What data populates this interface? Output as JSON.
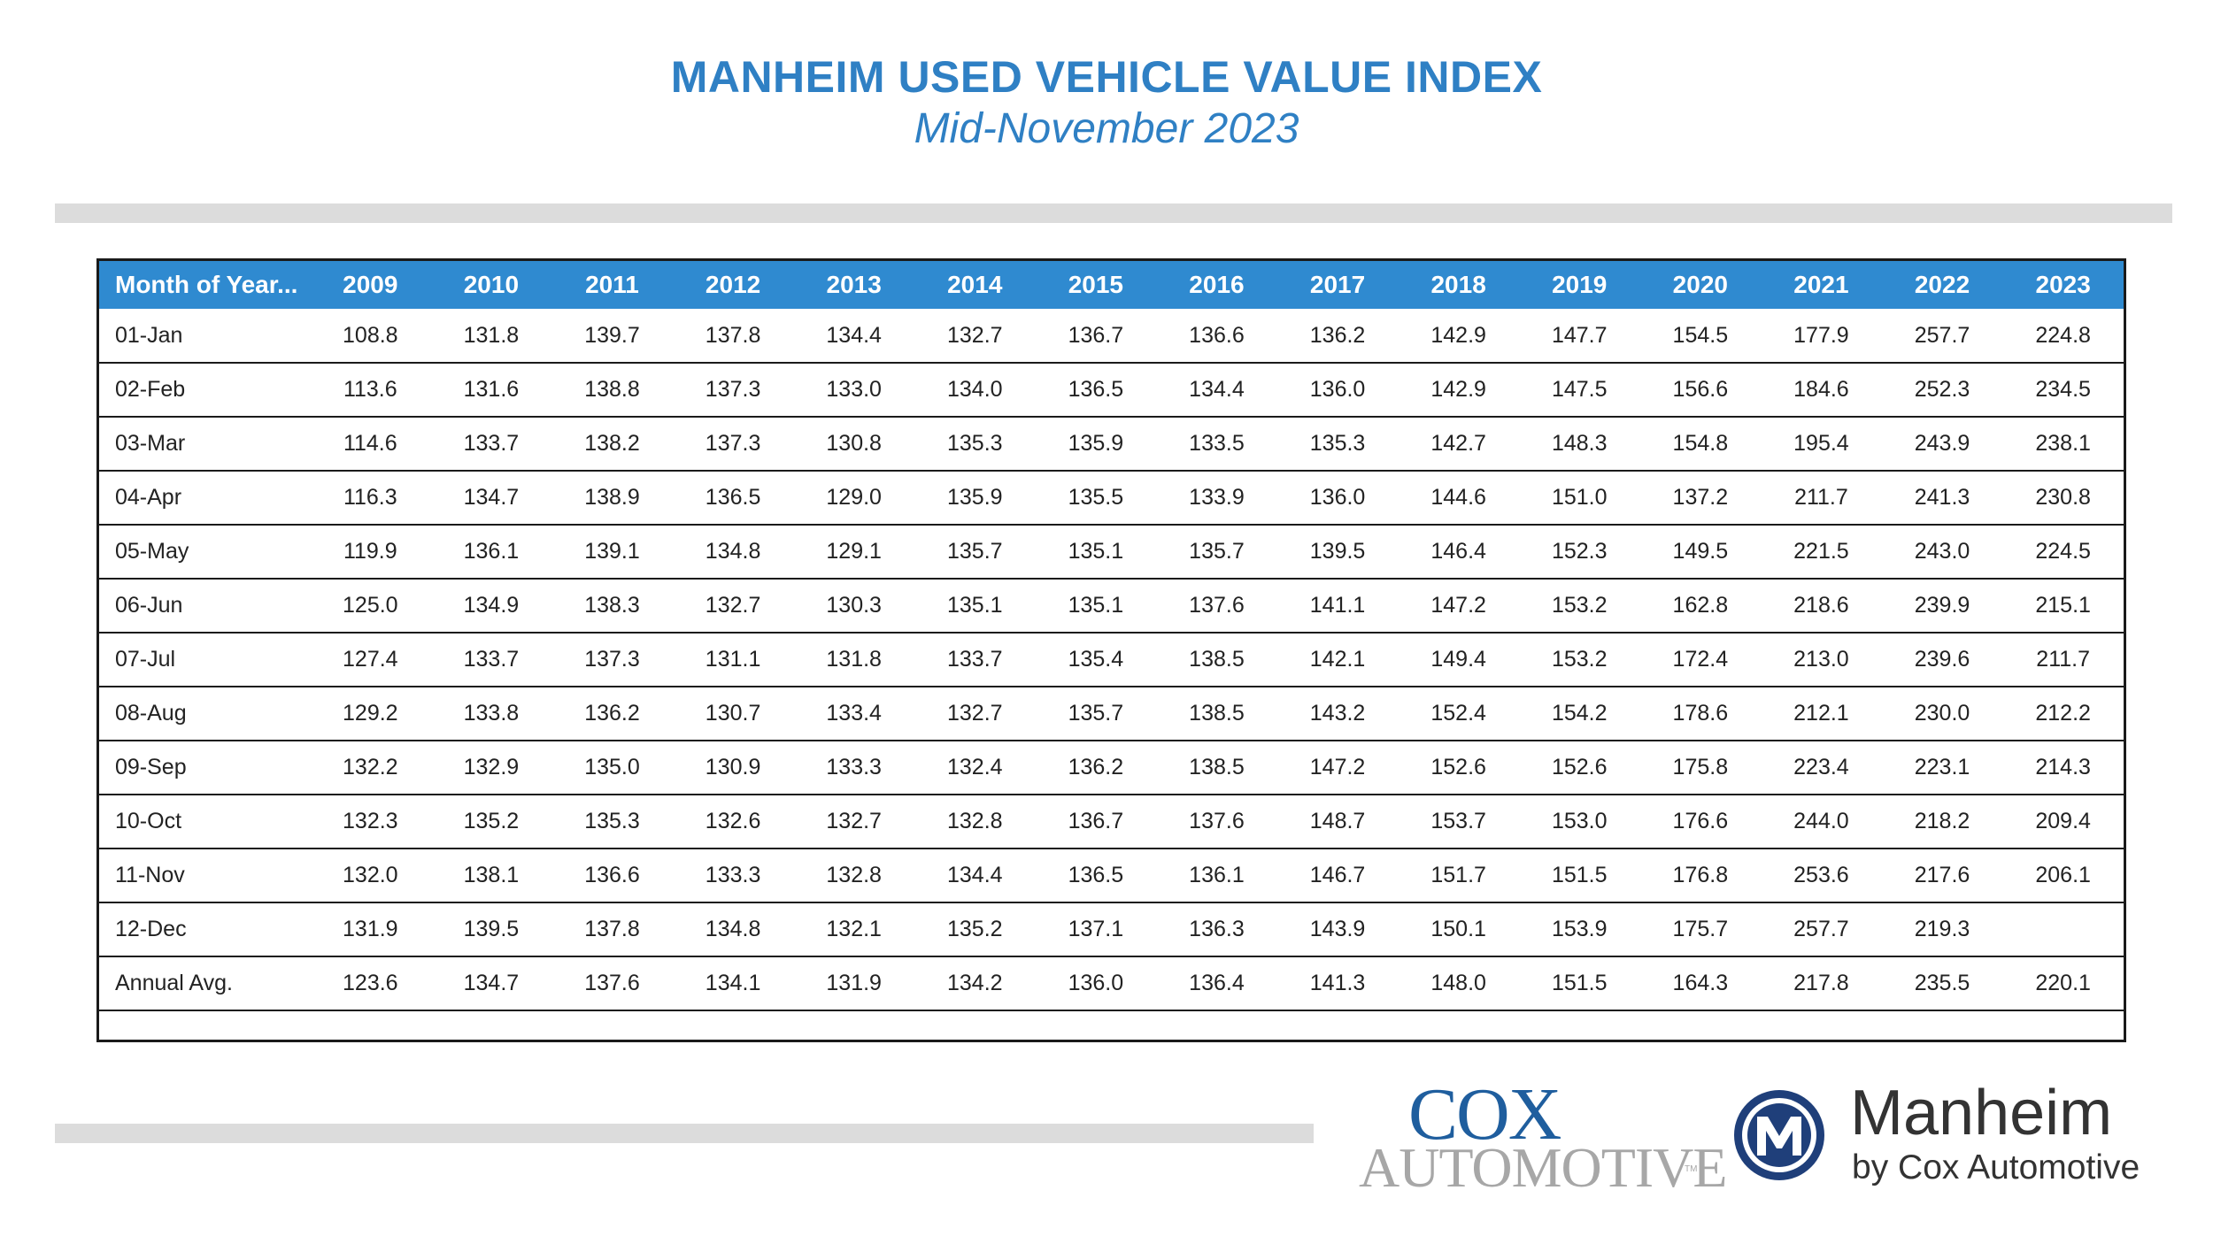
{
  "title": "MANHEIM USED VEHICLE VALUE INDEX",
  "subtitle": "Mid-November 2023",
  "table": {
    "headers": [
      "Month of Year...",
      "2009",
      "2010",
      "2011",
      "2012",
      "2013",
      "2014",
      "2015",
      "2016",
      "2017",
      "2018",
      "2019",
      "2020",
      "2021",
      "2022",
      "2023"
    ],
    "rows": [
      [
        "01-Jan",
        "108.8",
        "131.8",
        "139.7",
        "137.8",
        "134.4",
        "132.7",
        "136.7",
        "136.6",
        "136.2",
        "142.9",
        "147.7",
        "154.5",
        "177.9",
        "257.7",
        "224.8"
      ],
      [
        "02-Feb",
        "113.6",
        "131.6",
        "138.8",
        "137.3",
        "133.0",
        "134.0",
        "136.5",
        "134.4",
        "136.0",
        "142.9",
        "147.5",
        "156.6",
        "184.6",
        "252.3",
        "234.5"
      ],
      [
        "03-Mar",
        "114.6",
        "133.7",
        "138.2",
        "137.3",
        "130.8",
        "135.3",
        "135.9",
        "133.5",
        "135.3",
        "142.7",
        "148.3",
        "154.8",
        "195.4",
        "243.9",
        "238.1"
      ],
      [
        "04-Apr",
        "116.3",
        "134.7",
        "138.9",
        "136.5",
        "129.0",
        "135.9",
        "135.5",
        "133.9",
        "136.0",
        "144.6",
        "151.0",
        "137.2",
        "211.7",
        "241.3",
        "230.8"
      ],
      [
        "05-May",
        "119.9",
        "136.1",
        "139.1",
        "134.8",
        "129.1",
        "135.7",
        "135.1",
        "135.7",
        "139.5",
        "146.4",
        "152.3",
        "149.5",
        "221.5",
        "243.0",
        "224.5"
      ],
      [
        "06-Jun",
        "125.0",
        "134.9",
        "138.3",
        "132.7",
        "130.3",
        "135.1",
        "135.1",
        "137.6",
        "141.1",
        "147.2",
        "153.2",
        "162.8",
        "218.6",
        "239.9",
        "215.1"
      ],
      [
        "07-Jul",
        "127.4",
        "133.7",
        "137.3",
        "131.1",
        "131.8",
        "133.7",
        "135.4",
        "138.5",
        "142.1",
        "149.4",
        "153.2",
        "172.4",
        "213.0",
        "239.6",
        "211.7"
      ],
      [
        "08-Aug",
        "129.2",
        "133.8",
        "136.2",
        "130.7",
        "133.4",
        "132.7",
        "135.7",
        "138.5",
        "143.2",
        "152.4",
        "154.2",
        "178.6",
        "212.1",
        "230.0",
        "212.2"
      ],
      [
        "09-Sep",
        "132.2",
        "132.9",
        "135.0",
        "130.9",
        "133.3",
        "132.4",
        "136.2",
        "138.5",
        "147.2",
        "152.6",
        "152.6",
        "175.8",
        "223.4",
        "223.1",
        "214.3"
      ],
      [
        "10-Oct",
        "132.3",
        "135.2",
        "135.3",
        "132.6",
        "132.7",
        "132.8",
        "136.7",
        "137.6",
        "148.7",
        "153.7",
        "153.0",
        "176.6",
        "244.0",
        "218.2",
        "209.4"
      ],
      [
        "11-Nov",
        "132.0",
        "138.1",
        "136.6",
        "133.3",
        "132.8",
        "134.4",
        "136.5",
        "136.1",
        "146.7",
        "151.7",
        "151.5",
        "176.8",
        "253.6",
        "217.6",
        "206.1"
      ],
      [
        "12-Dec",
        "131.9",
        "139.5",
        "137.8",
        "134.8",
        "132.1",
        "135.2",
        "137.1",
        "136.3",
        "143.9",
        "150.1",
        "153.9",
        "175.7",
        "257.7",
        "219.3",
        ""
      ],
      [
        "Annual Avg.",
        "123.6",
        "134.7",
        "137.6",
        "134.1",
        "131.9",
        "134.2",
        "136.0",
        "136.4",
        "141.3",
        "148.0",
        "151.5",
        "164.3",
        "217.8",
        "235.5",
        "220.1"
      ]
    ]
  },
  "logos": {
    "cox_top": "COX",
    "cox_bottom": "AUTOMOTIVE",
    "cox_tm": "TM",
    "manheim_name": "Manheim",
    "manheim_tagline": "by Cox Automotive"
  },
  "colors": {
    "brand_blue": "#2f80c4",
    "header_blue": "#2f8ad0",
    "divider_gray": "#dcdcdc"
  }
}
